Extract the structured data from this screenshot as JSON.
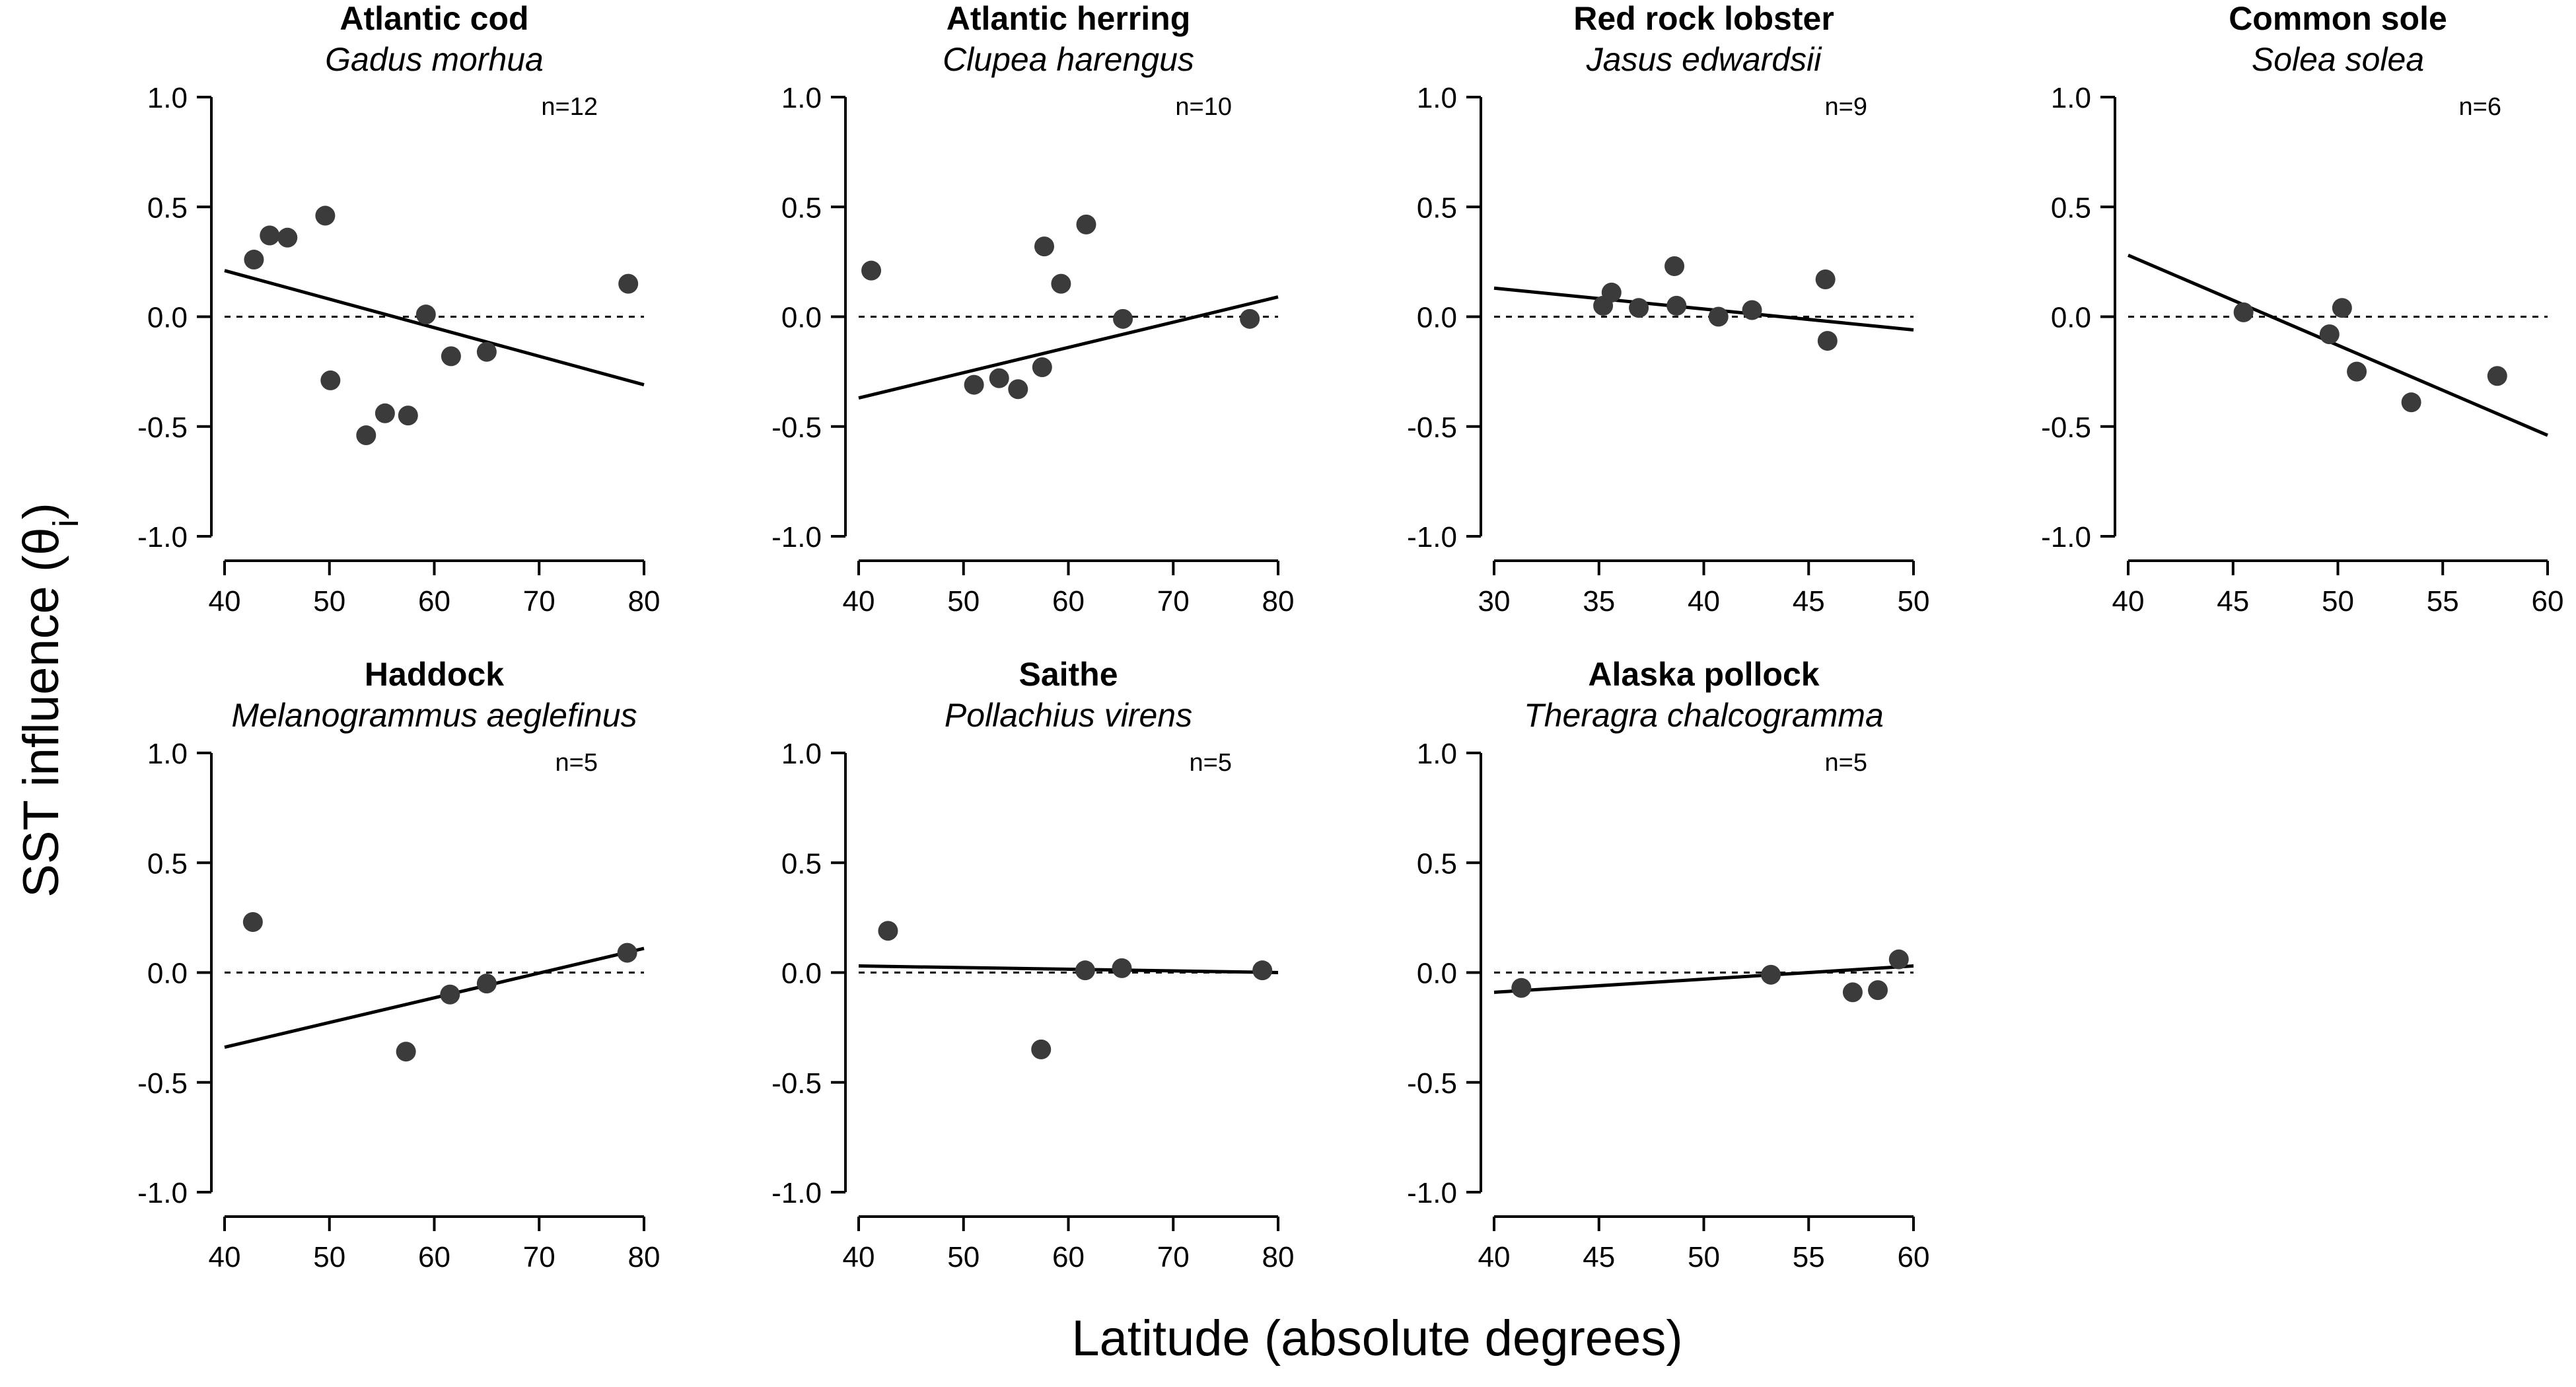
{
  "figure": {
    "ylabel": "SST influence (θ",
    "ylabel_sub": "i",
    "ylabel_close": ")",
    "xlabel": "Latitude (absolute degrees)"
  },
  "chart_data": [
    {
      "type": "scatter",
      "title": "Atlantic cod",
      "subtitle": "Gadus morhua",
      "n_label": "n=12",
      "xlim": [
        40,
        80
      ],
      "xticks": [
        40,
        50,
        60,
        70,
        80
      ],
      "ylim": [
        -1.0,
        1.0
      ],
      "yticks": [
        "1.0",
        "0.5",
        "0.0",
        "-0.5",
        "-1.0"
      ],
      "x": [
        42.8,
        44.3,
        46.0,
        49.6,
        50.1,
        53.5,
        55.3,
        57.5,
        59.2,
        61.6,
        65.0,
        78.5
      ],
      "y": [
        0.26,
        0.37,
        0.36,
        0.46,
        -0.29,
        -0.54,
        -0.44,
        -0.45,
        0.01,
        -0.18,
        -0.16,
        0.15
      ],
      "fit": [
        [
          40,
          0.21
        ],
        [
          80,
          -0.31
        ]
      ],
      "reference_line": 0
    },
    {
      "type": "scatter",
      "title": "Atlantic herring",
      "subtitle": "Clupea harengus",
      "n_label": "n=10",
      "xlim": [
        40,
        80
      ],
      "xticks": [
        40,
        50,
        60,
        70,
        80
      ],
      "ylim": [
        -1.0,
        1.0
      ],
      "yticks": [
        "1.0",
        "0.5",
        "0.0",
        "-0.5",
        "-1.0"
      ],
      "x": [
        41.2,
        51.0,
        53.4,
        55.2,
        57.5,
        57.7,
        59.3,
        61.7,
        65.2,
        77.3
      ],
      "y": [
        0.21,
        -0.31,
        -0.28,
        -0.33,
        -0.23,
        0.32,
        0.15,
        0.42,
        -0.01,
        -0.01
      ],
      "fit": [
        [
          40,
          -0.37
        ],
        [
          80,
          0.09
        ]
      ],
      "reference_line": 0
    },
    {
      "type": "scatter",
      "title": "Red rock lobster",
      "subtitle": "Jasus edwardsii",
      "n_label": "n=9",
      "xlim": [
        30,
        50
      ],
      "xticks": [
        30,
        35,
        40,
        45,
        50
      ],
      "ylim": [
        -1.0,
        1.0
      ],
      "yticks": [
        "1.0",
        "0.5",
        "0.0",
        "-0.5",
        "-1.0"
      ],
      "x": [
        35.2,
        35.6,
        36.9,
        38.6,
        38.7,
        40.7,
        42.3,
        45.8,
        45.9
      ],
      "y": [
        0.05,
        0.11,
        0.04,
        0.23,
        0.05,
        0.0,
        0.03,
        0.17,
        -0.11
      ],
      "fit": [
        [
          30,
          0.13
        ],
        [
          50,
          -0.06
        ]
      ],
      "reference_line": 0
    },
    {
      "type": "scatter",
      "title": "Common sole",
      "subtitle": "Solea solea",
      "n_label": "n=6",
      "xlim": [
        40,
        60
      ],
      "xticks": [
        40,
        45,
        50,
        55,
        60
      ],
      "ylim": [
        -1.0,
        1.0
      ],
      "yticks": [
        "1.0",
        "0.5",
        "0.0",
        "-0.5",
        "-1.0"
      ],
      "x": [
        45.5,
        49.6,
        50.2,
        50.9,
        53.5,
        57.6
      ],
      "y": [
        0.02,
        -0.08,
        0.04,
        -0.25,
        -0.39,
        -0.27
      ],
      "fit": [
        [
          40,
          0.28
        ],
        [
          60,
          -0.54
        ]
      ],
      "reference_line": 0
    },
    {
      "type": "scatter",
      "title": "Haddock",
      "subtitle": "Melanogrammus aeglefinus",
      "n_label": "n=5",
      "xlim": [
        40,
        80
      ],
      "xticks": [
        40,
        50,
        60,
        70,
        80
      ],
      "ylim": [
        -1.0,
        1.0
      ],
      "yticks": [
        "1.0",
        "0.5",
        "0.0",
        "-0.5",
        "-1.0"
      ],
      "x": [
        42.7,
        57.3,
        61.5,
        65.0,
        78.4
      ],
      "y": [
        0.23,
        -0.36,
        -0.1,
        -0.05,
        0.09
      ],
      "fit": [
        [
          40,
          -0.34
        ],
        [
          80,
          0.11
        ]
      ],
      "reference_line": 0
    },
    {
      "type": "scatter",
      "title": "Saithe",
      "subtitle": "Pollachius virens",
      "n_label": "n=5",
      "xlim": [
        40,
        80
      ],
      "xticks": [
        40,
        50,
        60,
        70,
        80
      ],
      "ylim": [
        -1.0,
        1.0
      ],
      "yticks": [
        "1.0",
        "0.5",
        "0.0",
        "-0.5",
        "-1.0"
      ],
      "x": [
        42.8,
        57.4,
        61.6,
        65.1,
        78.5
      ],
      "y": [
        0.19,
        -0.35,
        0.01,
        0.02,
        0.01
      ],
      "fit": [
        [
          40,
          0.03
        ],
        [
          80,
          0.0
        ]
      ],
      "reference_line": 0
    },
    {
      "type": "scatter",
      "title": "Alaska pollock",
      "subtitle": "Theragra chalcogramma",
      "n_label": "n=5",
      "xlim": [
        40,
        60
      ],
      "xticks": [
        40,
        45,
        50,
        55,
        60
      ],
      "ylim": [
        -1.0,
        1.0
      ],
      "yticks": [
        "1.0",
        "0.5",
        "0.0",
        "-0.5",
        "-1.0"
      ],
      "x": [
        41.3,
        53.2,
        57.1,
        58.3,
        59.3
      ],
      "y": [
        -0.07,
        -0.01,
        -0.09,
        -0.08,
        0.06
      ],
      "fit": [
        [
          40,
          -0.09
        ],
        [
          60,
          0.03
        ]
      ],
      "reference_line": 0
    }
  ]
}
